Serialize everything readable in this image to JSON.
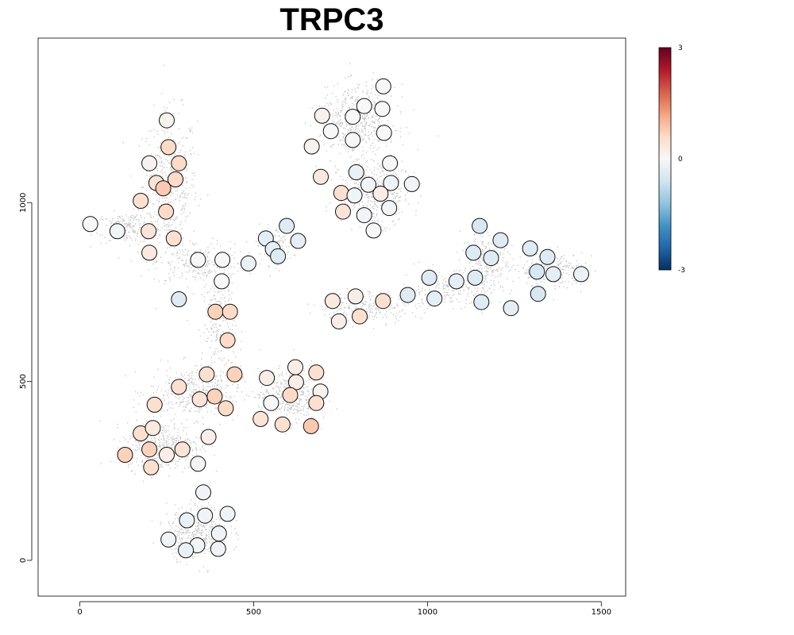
{
  "chart_data": {
    "type": "scatter",
    "title": "TRPC3",
    "xlabel": "",
    "ylabel": "",
    "xlim": [
      -120,
      1570
    ],
    "ylim": [
      -100,
      1460
    ],
    "x_ticks": [
      0,
      500,
      1000,
      1500
    ],
    "x_tick_labels": [
      "0",
      "500",
      "1000",
      "1500"
    ],
    "y_ticks": [
      0,
      500,
      1000
    ],
    "y_tick_labels": [
      "0",
      "500",
      "1000"
    ],
    "grid": false,
    "legend": "none",
    "colorbar": {
      "min": -3,
      "max": 3,
      "tick_values": [
        3,
        0,
        -3
      ],
      "tick_labels": [
        "3",
        "0",
        "-3"
      ],
      "colors": [
        "#053061",
        "#2166ac",
        "#4393c3",
        "#92c5de",
        "#d1e5f0",
        "#f7f7f7",
        "#fddbc7",
        "#f4a582",
        "#d6604d",
        "#b2182b",
        "#67001f"
      ]
    },
    "background_color": "#c8c8c8",
    "background_clusters": [
      {
        "x": 260,
        "y": 1050,
        "sx": 65,
        "sy": 170,
        "n": 420
      },
      {
        "x": 140,
        "y": 930,
        "sx": 80,
        "sy": 35,
        "n": 220
      },
      {
        "x": 340,
        "y": 830,
        "sx": 110,
        "sy": 50,
        "n": 250
      },
      {
        "x": 560,
        "y": 880,
        "sx": 45,
        "sy": 45,
        "n": 130
      },
      {
        "x": 400,
        "y": 660,
        "sx": 40,
        "sy": 110,
        "n": 200
      },
      {
        "x": 330,
        "y": 470,
        "sx": 110,
        "sy": 60,
        "n": 360
      },
      {
        "x": 240,
        "y": 320,
        "sx": 90,
        "sy": 55,
        "n": 420
      },
      {
        "x": 600,
        "y": 460,
        "sx": 70,
        "sy": 60,
        "n": 380
      },
      {
        "x": 340,
        "y": 80,
        "sx": 75,
        "sy": 60,
        "n": 420
      },
      {
        "x": 800,
        "y": 1230,
        "sx": 90,
        "sy": 80,
        "n": 520
      },
      {
        "x": 850,
        "y": 1030,
        "sx": 85,
        "sy": 75,
        "n": 420
      },
      {
        "x": 830,
        "y": 710,
        "sx": 120,
        "sy": 35,
        "n": 220
      },
      {
        "x": 1050,
        "y": 760,
        "sx": 100,
        "sy": 40,
        "n": 180
      },
      {
        "x": 1170,
        "y": 830,
        "sx": 60,
        "sy": 70,
        "n": 260
      },
      {
        "x": 1360,
        "y": 810,
        "sx": 75,
        "sy": 40,
        "n": 260
      }
    ],
    "points": [
      {
        "x": 250,
        "y": 1230,
        "v": 0.1
      },
      {
        "x": 255,
        "y": 1155,
        "v": 0.6
      },
      {
        "x": 200,
        "y": 1110,
        "v": 0.1
      },
      {
        "x": 285,
        "y": 1110,
        "v": 0.6
      },
      {
        "x": 220,
        "y": 1055,
        "v": 0.4
      },
      {
        "x": 275,
        "y": 1065,
        "v": 0.6
      },
      {
        "x": 240,
        "y": 1040,
        "v": 0.8
      },
      {
        "x": 175,
        "y": 1005,
        "v": 0.5
      },
      {
        "x": 248,
        "y": 975,
        "v": 0.6
      },
      {
        "x": 30,
        "y": 940,
        "v": 0.0
      },
      {
        "x": 108,
        "y": 920,
        "v": -0.1
      },
      {
        "x": 198,
        "y": 920,
        "v": 0.4
      },
      {
        "x": 270,
        "y": 900,
        "v": 0.5
      },
      {
        "x": 200,
        "y": 860,
        "v": 0.3
      },
      {
        "x": 340,
        "y": 840,
        "v": 0.0
      },
      {
        "x": 410,
        "y": 840,
        "v": 0.0
      },
      {
        "x": 485,
        "y": 830,
        "v": -0.2
      },
      {
        "x": 535,
        "y": 900,
        "v": -0.3
      },
      {
        "x": 595,
        "y": 935,
        "v": -0.4
      },
      {
        "x": 628,
        "y": 893,
        "v": -0.3
      },
      {
        "x": 555,
        "y": 870,
        "v": -0.3
      },
      {
        "x": 570,
        "y": 850,
        "v": -0.4
      },
      {
        "x": 408,
        "y": 780,
        "v": 0.0
      },
      {
        "x": 285,
        "y": 730,
        "v": -0.4
      },
      {
        "x": 390,
        "y": 695,
        "v": 0.7
      },
      {
        "x": 432,
        "y": 695,
        "v": 0.6
      },
      {
        "x": 425,
        "y": 615,
        "v": 0.6
      },
      {
        "x": 365,
        "y": 520,
        "v": 0.5
      },
      {
        "x": 445,
        "y": 520,
        "v": 0.7
      },
      {
        "x": 285,
        "y": 485,
        "v": 0.5
      },
      {
        "x": 345,
        "y": 450,
        "v": 0.4
      },
      {
        "x": 388,
        "y": 458,
        "v": 0.7
      },
      {
        "x": 420,
        "y": 425,
        "v": 0.6
      },
      {
        "x": 215,
        "y": 435,
        "v": 0.5
      },
      {
        "x": 175,
        "y": 355,
        "v": 0.5
      },
      {
        "x": 210,
        "y": 370,
        "v": 0.3
      },
      {
        "x": 370,
        "y": 345,
        "v": 0.2
      },
      {
        "x": 130,
        "y": 295,
        "v": 0.7
      },
      {
        "x": 200,
        "y": 310,
        "v": 0.7
      },
      {
        "x": 250,
        "y": 295,
        "v": 0.2
      },
      {
        "x": 295,
        "y": 310,
        "v": 0.4
      },
      {
        "x": 205,
        "y": 260,
        "v": 0.5
      },
      {
        "x": 340,
        "y": 270,
        "v": -0.1
      },
      {
        "x": 355,
        "y": 190,
        "v": -0.1
      },
      {
        "x": 425,
        "y": 130,
        "v": -0.1
      },
      {
        "x": 360,
        "y": 125,
        "v": -0.1
      },
      {
        "x": 308,
        "y": 112,
        "v": -0.2
      },
      {
        "x": 400,
        "y": 75,
        "v": -0.1
      },
      {
        "x": 255,
        "y": 58,
        "v": -0.1
      },
      {
        "x": 338,
        "y": 42,
        "v": -0.1
      },
      {
        "x": 305,
        "y": 28,
        "v": -0.2
      },
      {
        "x": 398,
        "y": 32,
        "v": -0.1
      },
      {
        "x": 520,
        "y": 395,
        "v": 0.4
      },
      {
        "x": 538,
        "y": 510,
        "v": 0.2
      },
      {
        "x": 550,
        "y": 440,
        "v": 0.0
      },
      {
        "x": 620,
        "y": 540,
        "v": 0.2
      },
      {
        "x": 622,
        "y": 498,
        "v": 0.2
      },
      {
        "x": 605,
        "y": 462,
        "v": 0.6
      },
      {
        "x": 583,
        "y": 380,
        "v": 0.5
      },
      {
        "x": 680,
        "y": 525,
        "v": 0.5
      },
      {
        "x": 692,
        "y": 472,
        "v": 0.1
      },
      {
        "x": 680,
        "y": 440,
        "v": 0.5
      },
      {
        "x": 665,
        "y": 375,
        "v": 0.8
      },
      {
        "x": 873,
        "y": 1325,
        "v": 0.0
      },
      {
        "x": 818,
        "y": 1270,
        "v": 0.0
      },
      {
        "x": 870,
        "y": 1262,
        "v": 0.0
      },
      {
        "x": 697,
        "y": 1243,
        "v": 0.1
      },
      {
        "x": 785,
        "y": 1240,
        "v": 0.0
      },
      {
        "x": 722,
        "y": 1200,
        "v": 0.0
      },
      {
        "x": 875,
        "y": 1195,
        "v": 0.0
      },
      {
        "x": 785,
        "y": 1175,
        "v": 0.0
      },
      {
        "x": 667,
        "y": 1157,
        "v": 0.1
      },
      {
        "x": 892,
        "y": 1110,
        "v": 0.0
      },
      {
        "x": 795,
        "y": 1085,
        "v": -0.2
      },
      {
        "x": 693,
        "y": 1072,
        "v": 0.3
      },
      {
        "x": 830,
        "y": 1050,
        "v": -0.1
      },
      {
        "x": 895,
        "y": 1055,
        "v": -0.1
      },
      {
        "x": 955,
        "y": 1052,
        "v": -0.1
      },
      {
        "x": 752,
        "y": 1027,
        "v": 0.5
      },
      {
        "x": 790,
        "y": 1020,
        "v": -0.1
      },
      {
        "x": 865,
        "y": 1025,
        "v": 0.2
      },
      {
        "x": 757,
        "y": 975,
        "v": 0.4
      },
      {
        "x": 818,
        "y": 965,
        "v": -0.1
      },
      {
        "x": 890,
        "y": 985,
        "v": -0.1
      },
      {
        "x": 845,
        "y": 922,
        "v": 0.0
      },
      {
        "x": 727,
        "y": 725,
        "v": 0.3
      },
      {
        "x": 793,
        "y": 738,
        "v": 0.2
      },
      {
        "x": 872,
        "y": 725,
        "v": 0.5
      },
      {
        "x": 745,
        "y": 668,
        "v": 0.2
      },
      {
        "x": 805,
        "y": 682,
        "v": 0.5
      },
      {
        "x": 943,
        "y": 742,
        "v": -0.4
      },
      {
        "x": 1005,
        "y": 790,
        "v": -0.4
      },
      {
        "x": 1020,
        "y": 732,
        "v": -0.3
      },
      {
        "x": 1083,
        "y": 780,
        "v": -0.3
      },
      {
        "x": 1150,
        "y": 935,
        "v": -0.5
      },
      {
        "x": 1210,
        "y": 895,
        "v": -0.4
      },
      {
        "x": 1132,
        "y": 860,
        "v": -0.4
      },
      {
        "x": 1183,
        "y": 845,
        "v": -0.4
      },
      {
        "x": 1137,
        "y": 790,
        "v": -0.4
      },
      {
        "x": 1155,
        "y": 722,
        "v": -0.4
      },
      {
        "x": 1240,
        "y": 705,
        "v": -0.3
      },
      {
        "x": 1295,
        "y": 872,
        "v": -0.4
      },
      {
        "x": 1345,
        "y": 848,
        "v": -0.4
      },
      {
        "x": 1315,
        "y": 807,
        "v": -0.5
      },
      {
        "x": 1362,
        "y": 800,
        "v": -0.3
      },
      {
        "x": 1318,
        "y": 745,
        "v": -0.5
      },
      {
        "x": 1442,
        "y": 800,
        "v": -0.2
      }
    ]
  }
}
